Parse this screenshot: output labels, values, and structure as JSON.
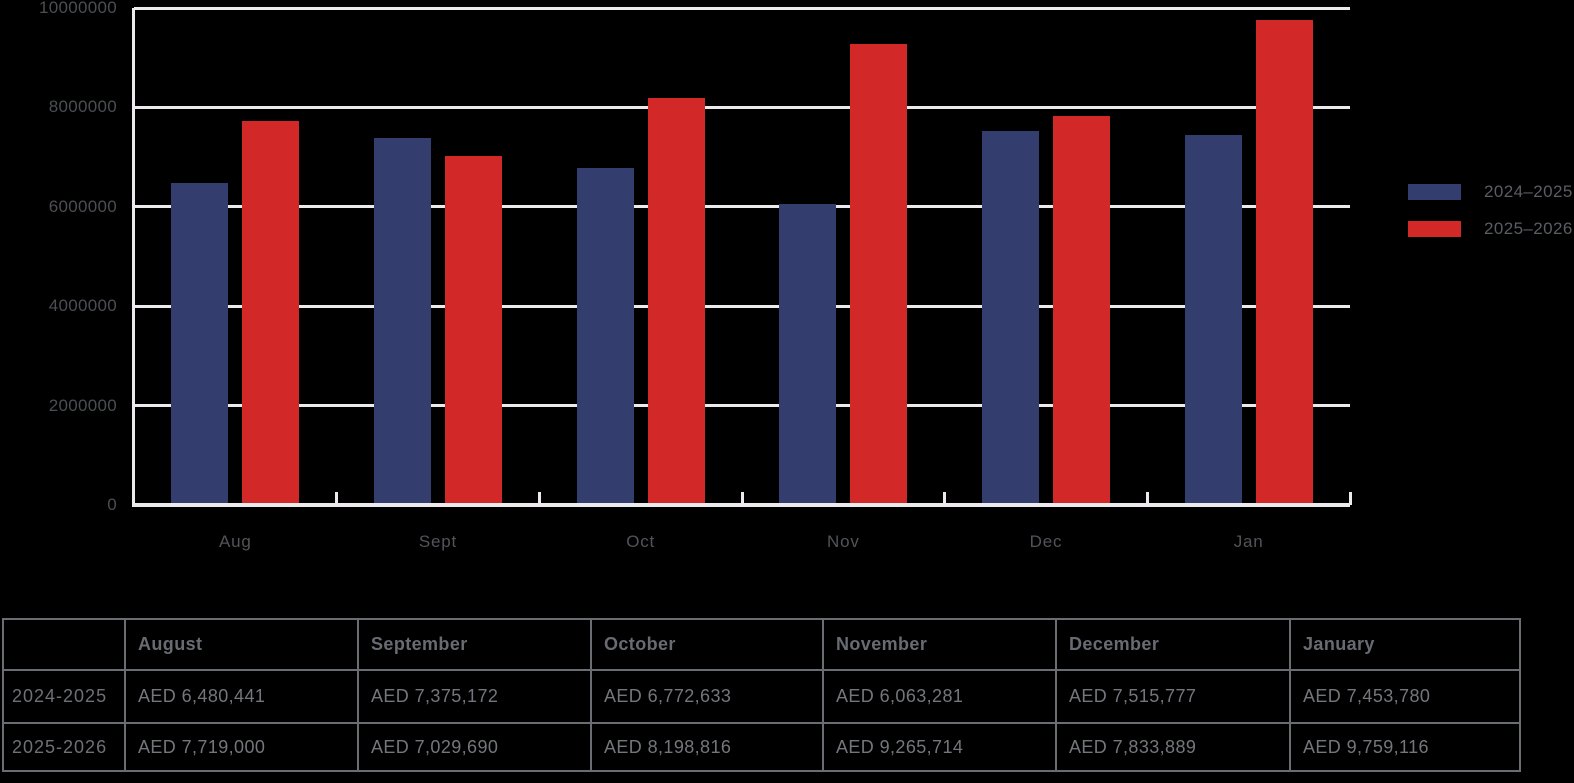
{
  "chart_data": {
    "type": "bar",
    "title": "",
    "xlabel": "",
    "ylabel": "",
    "categories": [
      "Aug",
      "Sept",
      "Oct",
      "Nov",
      "Dec",
      "Jan"
    ],
    "series": [
      {
        "name": "2024–2025",
        "color": "#333e6f",
        "values": [
          6480441,
          7375172,
          6772633,
          6063281,
          7515777,
          7453780
        ]
      },
      {
        "name": "2025–2026",
        "color": "#d22827",
        "values": [
          7719000,
          7029690,
          8198816,
          9265714,
          7833889,
          9759116
        ]
      }
    ],
    "ylim": [
      0,
      10000000
    ],
    "ytick_step": 2000000,
    "ytick_labels": [
      "0",
      "2000000",
      "4000000",
      "6000000",
      "8000000",
      "10000000"
    ],
    "grid": true,
    "legend_position": "right"
  },
  "table": {
    "columns": [
      "",
      "August",
      "September",
      "October",
      "November",
      "December",
      "January"
    ],
    "rows": [
      {
        "label": "2024-2025",
        "values": [
          "AED 6,480,441",
          "AED 7,375,172",
          "AED 6,772,633",
          "AED 6,063,281",
          "AED 7,515,777",
          "AED 7,453,780"
        ]
      },
      {
        "label": "2025-2026",
        "values": [
          "AED 7,719,000",
          "AED 7,029,690",
          "AED 8,198,816",
          "AED 9,265,714",
          "AED 7,833,889",
          "AED 9,759,116"
        ]
      }
    ]
  },
  "colors": {
    "background": "#000000",
    "series_2024_2025": "#333e6f",
    "series_2025_2026": "#d22827",
    "gridline": "#eceaec",
    "axis_label": "#4b4e53",
    "legend_label": "#5a5d63",
    "table_border": "#6a6d72",
    "table_header_text": "#686b71",
    "table_value_text": "#74767c"
  }
}
